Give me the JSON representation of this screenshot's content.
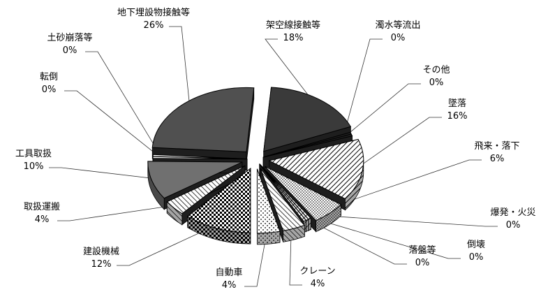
{
  "chart_data": {
    "type": "pie",
    "title": "",
    "slices": [
      {
        "label": "架空線接触等",
        "value": 18,
        "value_label": "18%",
        "fill": "#3a3a3a",
        "pattern": "none"
      },
      {
        "label": "濁水等流出",
        "value": 0,
        "value_label": "0%",
        "fill": "#222222",
        "pattern": "none"
      },
      {
        "label": "その他",
        "value": 0,
        "value_label": "0%",
        "fill": "#222222",
        "pattern": "none"
      },
      {
        "label": "墜落",
        "value": 16,
        "value_label": "16%",
        "fill": "#ffffff",
        "pattern": "diag-dense"
      },
      {
        "label": "飛来・落下",
        "value": 6,
        "value_label": "6%",
        "fill": "#ffffff",
        "pattern": "dots"
      },
      {
        "label": "爆発・火災",
        "value": 0,
        "value_label": "0%",
        "fill": "#ffffff",
        "pattern": "diag"
      },
      {
        "label": "倒壊",
        "value": 0,
        "value_label": "0%",
        "fill": "#ffffff",
        "pattern": "diag"
      },
      {
        "label": "落盤等",
        "value": 0,
        "value_label": "0%",
        "fill": "#ffffff",
        "pattern": "diag"
      },
      {
        "label": "クレーン",
        "value": 4,
        "value_label": "4%",
        "fill": "#ffffff",
        "pattern": "diag-back"
      },
      {
        "label": "自動車",
        "value": 4,
        "value_label": "4%",
        "fill": "#ffffff",
        "pattern": "dots-light"
      },
      {
        "label": "建設機械",
        "value": 12,
        "value_label": "12%",
        "fill": "#ffffff",
        "pattern": "checker"
      },
      {
        "label": "取扱運搬",
        "value": 4,
        "value_label": "4%",
        "fill": "#ffffff",
        "pattern": "diag-back"
      },
      {
        "label": "工具取扱",
        "value": 10,
        "value_label": "10%",
        "fill": "#707070",
        "pattern": "none"
      },
      {
        "label": "転倒",
        "value": 0,
        "value_label": "0%",
        "fill": "#ffffff",
        "pattern": "none"
      },
      {
        "label": "土砂崩落等",
        "value": 0,
        "value_label": "0%",
        "fill": "#ffffff",
        "pattern": "none"
      },
      {
        "label": "地下埋設物接触等",
        "value": 26,
        "value_label": "26%",
        "fill": "#505050",
        "pattern": "none"
      }
    ]
  }
}
